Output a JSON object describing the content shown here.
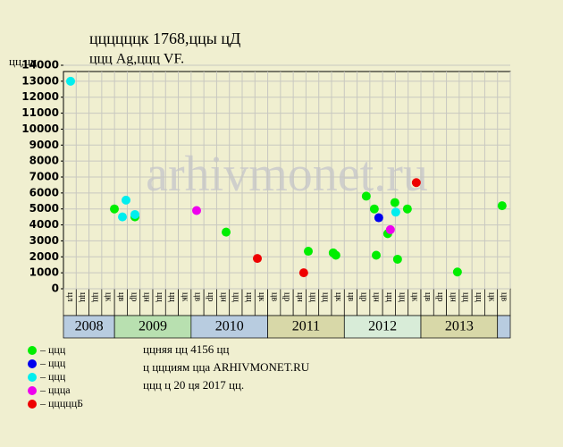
{
  "chart_data": {
    "type": "scatter",
    "title": "ццццццк 1768,ццы цД",
    "subtitle": "ццц Ag,ццц VF.",
    "y_label": "цц,цц",
    "watermark": "arhivmonet.ru",
    "notes": [
      "ццняя цц 4156 цц",
      "ц ццциям цца ARHIVMONET.RU",
      "ццц ц 20 ця 2017 цц."
    ],
    "categories": [
      "цл",
      "цц",
      "цц",
      "цк",
      "цв",
      "цр",
      "цн",
      "цц",
      "цц",
      "цк",
      "цв",
      "цр",
      "цн",
      "цц",
      "цц",
      "цк",
      "цв",
      "цр",
      "цн",
      "цц",
      "цц",
      "цк",
      "цв",
      "цр",
      "цн",
      "цц",
      "цц",
      "цк",
      "цв",
      "цр",
      "цн",
      "цц",
      "цц",
      "цк",
      "цв"
    ],
    "year_groups": [
      {
        "label": "2008",
        "span": 4,
        "color": "#b8cce0"
      },
      {
        "label": "2009",
        "span": 6,
        "color": "#b8e0b0"
      },
      {
        "label": "2010",
        "span": 6,
        "color": "#b8cce0"
      },
      {
        "label": "2011",
        "span": 6,
        "color": "#d8d8a8"
      },
      {
        "label": "2012",
        "span": 6,
        "color": "#d8ecd8"
      },
      {
        "label": "2013",
        "span": 6,
        "color": "#d8d8a8"
      },
      {
        "label": null,
        "span": 1,
        "color": "#b8cce0"
      }
    ],
    "xlim": [
      0,
      35
    ],
    "ylim": [
      0,
      14000
    ],
    "yticks": [
      0,
      1000,
      2000,
      3000,
      4000,
      5000,
      6000,
      7000,
      8000,
      9000,
      10000,
      11000,
      12000,
      13000,
      14000
    ],
    "grid": true,
    "series": [
      {
        "name": "– ццц",
        "color": "#00ee00",
        "x": [
          3.99,
          5.6,
          12.74,
          19.18,
          21.13,
          21.34,
          23.72,
          24.35,
          24.5,
          25.4,
          25.96,
          26.17,
          26.94,
          30.86,
          34.36
        ],
        "values": [
          5000,
          4500,
          3550,
          2350,
          2250,
          2100,
          5800,
          5000,
          2100,
          3450,
          5400,
          1850,
          5000,
          1050,
          5200
        ]
      },
      {
        "name": "– ццц",
        "color": "#0000ee",
        "x": [
          24.7
        ],
        "values": [
          4450
        ]
      },
      {
        "name": "– ццц",
        "color": "#00eeee",
        "x": [
          0.56,
          4.62,
          4.9,
          5.6,
          26.03
        ],
        "values": [
          13000,
          4500,
          5550,
          4650,
          4800
        ]
      },
      {
        "name": "– ццца",
        "color": "#ee00ee",
        "x": [
          10.43,
          25.61
        ],
        "values": [
          4900,
          3700
        ]
      },
      {
        "name": "– цццццБ",
        "color": "#ee0000",
        "x": [
          15.19,
          18.82,
          27.64
        ],
        "values": [
          1900,
          1000,
          6650
        ]
      }
    ]
  }
}
